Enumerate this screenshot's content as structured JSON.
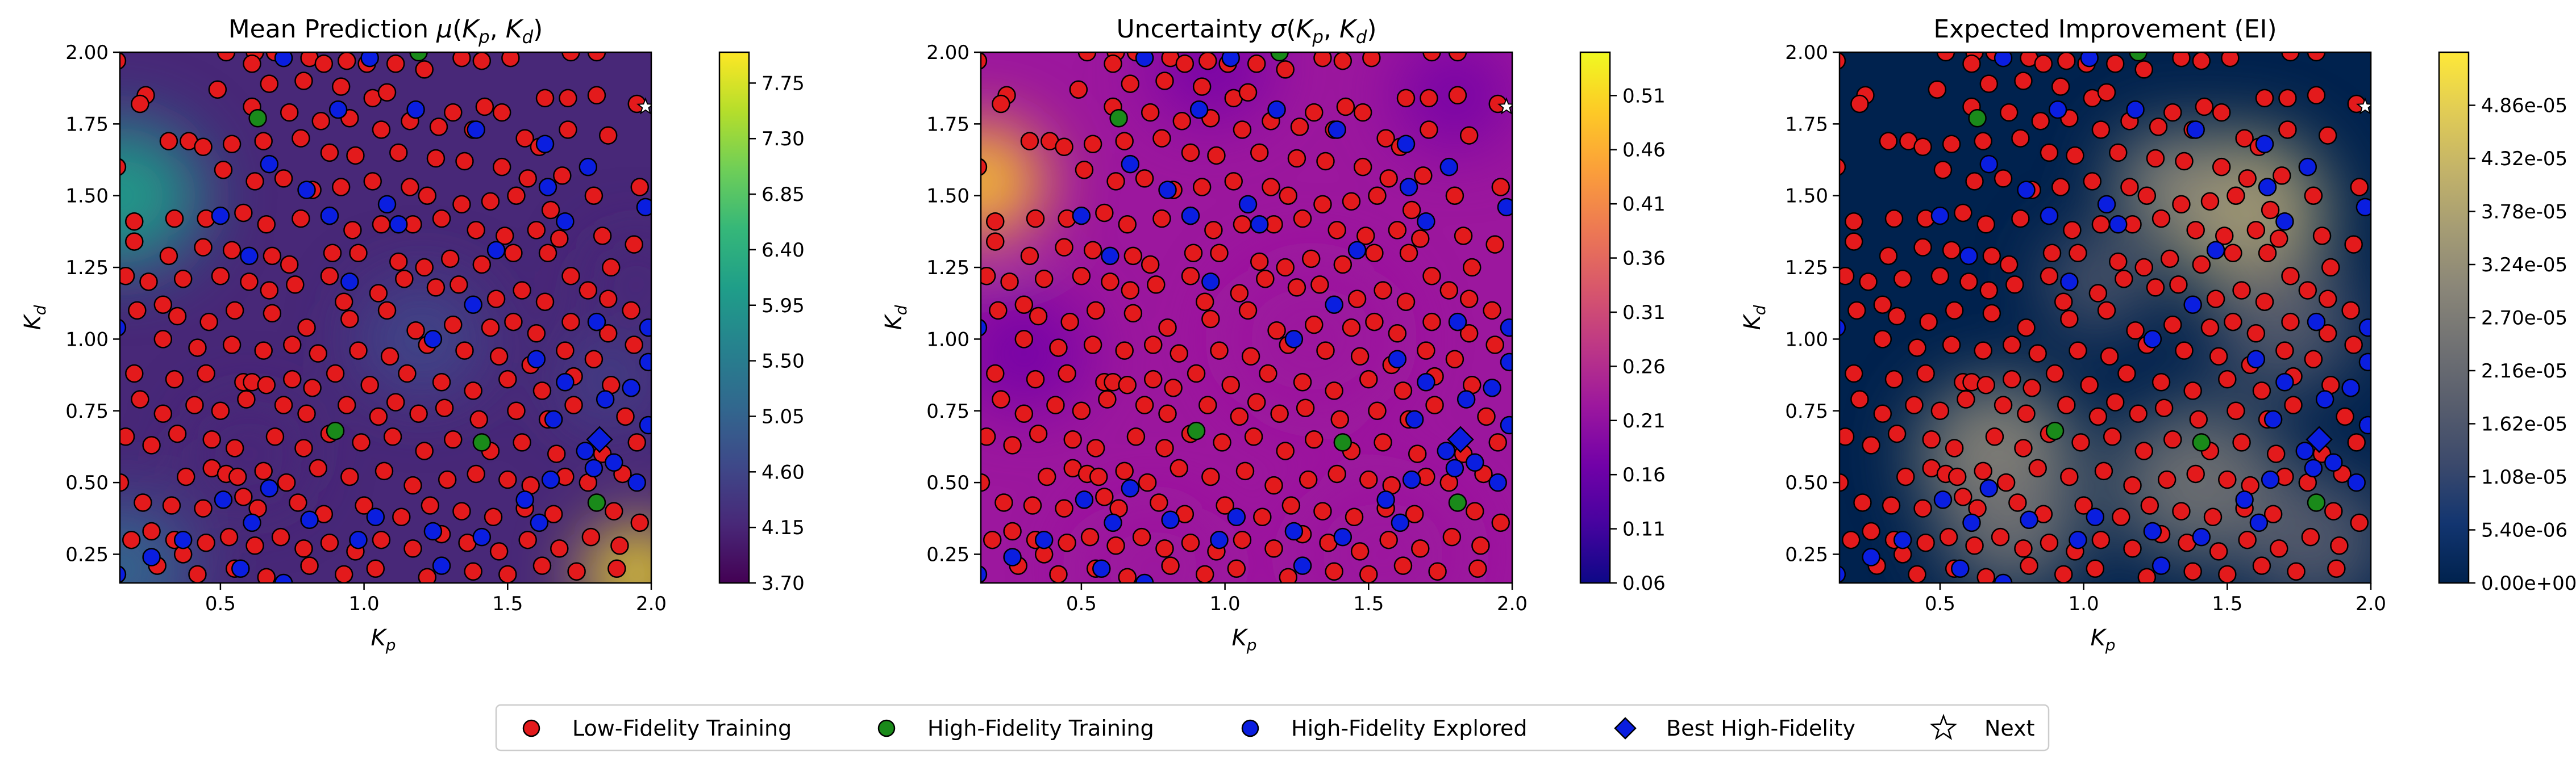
{
  "chart_data": [
    {
      "type": "heatmap",
      "title": "Mean Prediction μ(K_p, K_d)",
      "title_parts": [
        "Mean Prediction ",
        "μ",
        "(",
        "K",
        "p",
        ", ",
        "K",
        "d",
        ")"
      ],
      "xlabel": "K_p",
      "ylabel": "K_d",
      "xlim": [
        0.15,
        2.0
      ],
      "ylim": [
        0.15,
        2.0
      ],
      "x_ticks": [
        "0.5",
        "1.0",
        "1.5",
        "2.0"
      ],
      "x_tick_values": [
        0.5,
        1.0,
        1.5,
        2.0
      ],
      "y_ticks": [
        "0.25",
        "0.50",
        "0.75",
        "1.00",
        "1.25",
        "1.50",
        "1.75",
        "2.00"
      ],
      "y_tick_values": [
        0.25,
        0.5,
        0.75,
        1.0,
        1.25,
        1.5,
        1.75,
        2.0
      ],
      "colormap": "viridis",
      "colorbar_range": [
        3.7,
        8.0
      ],
      "colorbar_ticks": [
        "3.70",
        "4.15",
        "4.60",
        "5.05",
        "5.50",
        "5.95",
        "6.40",
        "6.85",
        "7.30",
        "7.75"
      ],
      "colorbar_tick_values": [
        3.7,
        4.15,
        4.6,
        5.05,
        5.5,
        5.95,
        6.4,
        6.85,
        7.3,
        7.75
      ]
    },
    {
      "type": "heatmap",
      "title": "Uncertainty σ(K_p, K_d)",
      "title_parts": [
        "Uncertainty ",
        "σ",
        "(",
        "K",
        "p",
        ", ",
        "K",
        "d",
        ")"
      ],
      "xlabel": "K_p",
      "ylabel": "K_d",
      "xlim": [
        0.15,
        2.0
      ],
      "ylim": [
        0.15,
        2.0
      ],
      "x_ticks": [
        "0.5",
        "1.0",
        "1.5",
        "2.0"
      ],
      "x_tick_values": [
        0.5,
        1.0,
        1.5,
        2.0
      ],
      "y_ticks": [
        "0.25",
        "0.50",
        "0.75",
        "1.00",
        "1.25",
        "1.50",
        "1.75",
        "2.00"
      ],
      "y_tick_values": [
        0.25,
        0.5,
        0.75,
        1.0,
        1.25,
        1.5,
        1.75,
        2.0
      ],
      "colormap": "plasma",
      "colorbar_range": [
        0.06,
        0.55
      ],
      "colorbar_ticks": [
        "0.06",
        "0.11",
        "0.16",
        "0.21",
        "0.26",
        "0.31",
        "0.36",
        "0.41",
        "0.46",
        "0.51"
      ],
      "colorbar_tick_values": [
        0.06,
        0.11,
        0.16,
        0.21,
        0.26,
        0.31,
        0.36,
        0.41,
        0.46,
        0.51
      ]
    },
    {
      "type": "heatmap",
      "title": "Expected Improvement (EI)",
      "title_parts": [
        "Expected Improvement (EI)"
      ],
      "xlabel": "K_p",
      "ylabel": "K_d",
      "xlim": [
        0.15,
        2.0
      ],
      "ylim": [
        0.15,
        2.0
      ],
      "x_ticks": [
        "0.5",
        "1.0",
        "1.5",
        "2.0"
      ],
      "x_tick_values": [
        0.5,
        1.0,
        1.5,
        2.0
      ],
      "y_ticks": [
        "0.25",
        "0.50",
        "0.75",
        "1.00",
        "1.25",
        "1.50",
        "1.75",
        "2.00"
      ],
      "y_tick_values": [
        0.25,
        0.5,
        0.75,
        1.0,
        1.25,
        1.5,
        1.75,
        2.0
      ],
      "colormap": "cividis",
      "colorbar_range": [
        0,
        5.4e-05
      ],
      "colorbar_ticks": [
        "0.00e+00",
        "5.40e-06",
        "1.08e-05",
        "1.62e-05",
        "2.16e-05",
        "2.70e-05",
        "3.24e-05",
        "3.78e-05",
        "4.32e-05",
        "4.86e-05"
      ],
      "colorbar_tick_values": [
        0,
        5.4e-06,
        1.08e-05,
        1.62e-05,
        2.16e-05,
        2.7e-05,
        3.24e-05,
        3.78e-05,
        4.32e-05,
        4.86e-05
      ]
    }
  ],
  "points": {
    "low_fidelity": [
      [
        0.62,
        2.0
      ],
      [
        0.69,
        2.0
      ],
      [
        0.52,
        2.0
      ],
      [
        0.14,
        1.97
      ],
      [
        0.61,
        1.96
      ],
      [
        0.81,
        1.98
      ],
      [
        0.86,
        1.96
      ],
      [
        0.94,
        1.97
      ],
      [
        1.01,
        1.96
      ],
      [
        1.11,
        1.96
      ],
      [
        1.21,
        1.94
      ],
      [
        1.34,
        1.98
      ],
      [
        1.41,
        1.97
      ],
      [
        1.51,
        1.98
      ],
      [
        1.72,
        2.0
      ],
      [
        1.81,
        2.0
      ],
      [
        0.24,
        1.85
      ],
      [
        0.22,
        1.82
      ],
      [
        0.49,
        1.87
      ],
      [
        0.67,
        1.89
      ],
      [
        0.79,
        1.9
      ],
      [
        0.92,
        1.88
      ],
      [
        1.03,
        1.84
      ],
      [
        1.08,
        1.86
      ],
      [
        1.31,
        1.79
      ],
      [
        1.42,
        1.81
      ],
      [
        1.48,
        1.79
      ],
      [
        1.63,
        1.84
      ],
      [
        1.71,
        1.84
      ],
      [
        1.81,
        1.85
      ],
      [
        1.95,
        1.82
      ],
      [
        0.61,
        1.81
      ],
      [
        0.74,
        1.79
      ],
      [
        0.85,
        1.76
      ],
      [
        0.95,
        1.77
      ],
      [
        1.06,
        1.73
      ],
      [
        1.16,
        1.76
      ],
      [
        1.26,
        1.74
      ],
      [
        1.38,
        1.73
      ],
      [
        1.56,
        1.7
      ],
      [
        1.61,
        1.67
      ],
      [
        1.71,
        1.73
      ],
      [
        1.85,
        1.71
      ],
      [
        0.14,
        1.6
      ],
      [
        0.32,
        1.69
      ],
      [
        0.39,
        1.69
      ],
      [
        0.44,
        1.67
      ],
      [
        0.54,
        1.68
      ],
      [
        0.65,
        1.69
      ],
      [
        0.78,
        1.7
      ],
      [
        0.88,
        1.65
      ],
      [
        0.97,
        1.64
      ],
      [
        1.12,
        1.65
      ],
      [
        1.25,
        1.63
      ],
      [
        1.35,
        1.62
      ],
      [
        1.48,
        1.6
      ],
      [
        1.57,
        1.56
      ],
      [
        1.69,
        1.57
      ],
      [
        0.51,
        1.59
      ],
      [
        0.62,
        1.55
      ],
      [
        0.72,
        1.56
      ],
      [
        0.82,
        1.52
      ],
      [
        0.92,
        1.53
      ],
      [
        1.03,
        1.55
      ],
      [
        1.16,
        1.53
      ],
      [
        1.22,
        1.5
      ],
      [
        1.34,
        1.47
      ],
      [
        1.44,
        1.48
      ],
      [
        1.53,
        1.5
      ],
      [
        1.65,
        1.45
      ],
      [
        1.8,
        1.5
      ],
      [
        1.96,
        1.53
      ],
      [
        0.2,
        1.41
      ],
      [
        0.34,
        1.42
      ],
      [
        0.45,
        1.42
      ],
      [
        0.58,
        1.44
      ],
      [
        0.66,
        1.4
      ],
      [
        0.78,
        1.42
      ],
      [
        0.88,
        1.43
      ],
      [
        0.96,
        1.38
      ],
      [
        1.06,
        1.4
      ],
      [
        1.17,
        1.4
      ],
      [
        1.27,
        1.42
      ],
      [
        1.39,
        1.38
      ],
      [
        1.49,
        1.36
      ],
      [
        1.6,
        1.38
      ],
      [
        1.68,
        1.35
      ],
      [
        1.83,
        1.36
      ],
      [
        0.2,
        1.34
      ],
      [
        0.32,
        1.29
      ],
      [
        0.44,
        1.32
      ],
      [
        0.54,
        1.31
      ],
      [
        0.68,
        1.29
      ],
      [
        0.74,
        1.26
      ],
      [
        0.89,
        1.3
      ],
      [
        0.98,
        1.3
      ],
      [
        1.12,
        1.27
      ],
      [
        1.21,
        1.25
      ],
      [
        1.3,
        1.28
      ],
      [
        1.41,
        1.26
      ],
      [
        1.52,
        1.3
      ],
      [
        1.64,
        1.3
      ],
      [
        1.72,
        1.22
      ],
      [
        1.86,
        1.25
      ],
      [
        1.94,
        1.33
      ],
      [
        0.17,
        1.22
      ],
      [
        0.25,
        1.2
      ],
      [
        0.3,
        1.12
      ],
      [
        0.37,
        1.21
      ],
      [
        0.5,
        1.22
      ],
      [
        0.6,
        1.2
      ],
      [
        0.67,
        1.17
      ],
      [
        0.76,
        1.19
      ],
      [
        0.88,
        1.22
      ],
      [
        0.93,
        1.13
      ],
      [
        1.05,
        1.16
      ],
      [
        1.14,
        1.21
      ],
      [
        1.25,
        1.18
      ],
      [
        1.33,
        1.19
      ],
      [
        1.46,
        1.14
      ],
      [
        1.55,
        1.17
      ],
      [
        1.63,
        1.13
      ],
      [
        1.78,
        1.17
      ],
      [
        1.85,
        1.14
      ],
      [
        0.21,
        1.1
      ],
      [
        0.35,
        1.08
      ],
      [
        0.46,
        1.06
      ],
      [
        0.55,
        1.1
      ],
      [
        0.68,
        1.09
      ],
      [
        0.8,
        1.04
      ],
      [
        0.95,
        1.07
      ],
      [
        1.08,
        1.1
      ],
      [
        1.18,
        1.03
      ],
      [
        1.31,
        1.05
      ],
      [
        1.44,
        1.04
      ],
      [
        1.52,
        1.06
      ],
      [
        1.6,
        1.02
      ],
      [
        1.72,
        1.06
      ],
      [
        1.85,
        1.02
      ],
      [
        1.93,
        1.1
      ],
      [
        0.3,
        1.0
      ],
      [
        0.42,
        0.97
      ],
      [
        0.54,
        0.98
      ],
      [
        0.65,
        0.96
      ],
      [
        0.75,
        0.98
      ],
      [
        0.84,
        0.95
      ],
      [
        0.98,
        0.96
      ],
      [
        1.09,
        0.94
      ],
      [
        1.22,
        0.98
      ],
      [
        1.35,
        0.96
      ],
      [
        1.47,
        0.94
      ],
      [
        1.58,
        0.91
      ],
      [
        1.7,
        0.96
      ],
      [
        1.8,
        0.93
      ],
      [
        1.94,
        0.98
      ],
      [
        0.2,
        0.88
      ],
      [
        0.34,
        0.86
      ],
      [
        0.45,
        0.88
      ],
      [
        0.58,
        0.85
      ],
      [
        0.61,
        0.85
      ],
      [
        0.66,
        0.84
      ],
      [
        0.75,
        0.86
      ],
      [
        0.82,
        0.83
      ],
      [
        0.9,
        0.88
      ],
      [
        1.02,
        0.84
      ],
      [
        1.15,
        0.88
      ],
      [
        1.27,
        0.85
      ],
      [
        1.38,
        0.82
      ],
      [
        1.5,
        0.86
      ],
      [
        1.62,
        0.82
      ],
      [
        1.73,
        0.87
      ],
      [
        1.86,
        0.84
      ],
      [
        0.22,
        0.79
      ],
      [
        0.3,
        0.74
      ],
      [
        0.41,
        0.77
      ],
      [
        0.5,
        0.75
      ],
      [
        0.59,
        0.79
      ],
      [
        0.72,
        0.77
      ],
      [
        0.8,
        0.74
      ],
      [
        0.94,
        0.77
      ],
      [
        1.05,
        0.73
      ],
      [
        1.11,
        0.78
      ],
      [
        1.19,
        0.74
      ],
      [
        1.28,
        0.76
      ],
      [
        1.4,
        0.72
      ],
      [
        1.53,
        0.75
      ],
      [
        1.64,
        0.72
      ],
      [
        1.73,
        0.77
      ],
      [
        1.91,
        0.73
      ],
      [
        0.17,
        0.66
      ],
      [
        0.26,
        0.63
      ],
      [
        0.35,
        0.67
      ],
      [
        0.47,
        0.65
      ],
      [
        0.55,
        0.62
      ],
      [
        0.69,
        0.66
      ],
      [
        0.79,
        0.62
      ],
      [
        0.88,
        0.67
      ],
      [
        0.99,
        0.64
      ],
      [
        1.1,
        0.66
      ],
      [
        1.21,
        0.61
      ],
      [
        1.31,
        0.65
      ],
      [
        1.44,
        0.61
      ],
      [
        1.55,
        0.64
      ],
      [
        1.67,
        0.6
      ],
      [
        1.83,
        0.6
      ],
      [
        1.95,
        0.64
      ],
      [
        0.15,
        0.5
      ],
      [
        0.38,
        0.52
      ],
      [
        0.47,
        0.55
      ],
      [
        0.52,
        0.53
      ],
      [
        0.56,
        0.52
      ],
      [
        0.65,
        0.54
      ],
      [
        0.73,
        0.5
      ],
      [
        0.84,
        0.55
      ],
      [
        0.95,
        0.52
      ],
      [
        1.07,
        0.54
      ],
      [
        1.17,
        0.49
      ],
      [
        1.29,
        0.51
      ],
      [
        1.39,
        0.53
      ],
      [
        1.5,
        0.51
      ],
      [
        1.58,
        0.49
      ],
      [
        1.7,
        0.52
      ],
      [
        1.78,
        0.5
      ],
      [
        1.9,
        0.53
      ],
      [
        0.23,
        0.43
      ],
      [
        0.33,
        0.42
      ],
      [
        0.44,
        0.41
      ],
      [
        0.58,
        0.45
      ],
      [
        0.63,
        0.41
      ],
      [
        0.77,
        0.43
      ],
      [
        0.86,
        0.39
      ],
      [
        1.0,
        0.42
      ],
      [
        1.13,
        0.38
      ],
      [
        1.23,
        0.42
      ],
      [
        1.34,
        0.4
      ],
      [
        1.45,
        0.38
      ],
      [
        1.56,
        0.41
      ],
      [
        1.66,
        0.39
      ],
      [
        1.87,
        0.4
      ],
      [
        1.96,
        0.36
      ],
      [
        0.19,
        0.3
      ],
      [
        0.26,
        0.33
      ],
      [
        0.34,
        0.3
      ],
      [
        0.37,
        0.25
      ],
      [
        0.45,
        0.29
      ],
      [
        0.53,
        0.31
      ],
      [
        0.62,
        0.28
      ],
      [
        0.71,
        0.31
      ],
      [
        0.79,
        0.27
      ],
      [
        0.88,
        0.29
      ],
      [
        0.97,
        0.26
      ],
      [
        1.06,
        0.3
      ],
      [
        1.17,
        0.27
      ],
      [
        1.27,
        0.32
      ],
      [
        1.36,
        0.29
      ],
      [
        1.47,
        0.26
      ],
      [
        1.57,
        0.3
      ],
      [
        1.68,
        0.27
      ],
      [
        1.79,
        0.31
      ],
      [
        1.89,
        0.28
      ],
      [
        0.28,
        0.21
      ],
      [
        0.42,
        0.18
      ],
      [
        0.55,
        0.2
      ],
      [
        0.66,
        0.17
      ],
      [
        0.81,
        0.21
      ],
      [
        0.93,
        0.18
      ],
      [
        1.04,
        0.2
      ],
      [
        1.22,
        0.17
      ],
      [
        1.38,
        0.19
      ],
      [
        1.5,
        0.18
      ],
      [
        1.62,
        0.21
      ],
      [
        1.74,
        0.19
      ],
      [
        1.88,
        0.2
      ]
    ],
    "high_fidelity": [
      [
        0.63,
        1.77
      ],
      [
        0.9,
        0.68
      ],
      [
        1.41,
        0.64
      ],
      [
        1.81,
        0.43
      ],
      [
        1.19,
        2.0
      ]
    ],
    "explored": [
      [
        0.72,
        1.98
      ],
      [
        1.02,
        1.98
      ],
      [
        0.91,
        1.8
      ],
      [
        1.18,
        1.8
      ],
      [
        1.39,
        1.73
      ],
      [
        1.63,
        1.68
      ],
      [
        0.67,
        1.61
      ],
      [
        0.8,
        1.52
      ],
      [
        0.5,
        1.43
      ],
      [
        0.88,
        1.43
      ],
      [
        1.08,
        1.47
      ],
      [
        1.78,
        1.6
      ],
      [
        1.64,
        1.53
      ],
      [
        0.6,
        1.29
      ],
      [
        1.46,
        1.31
      ],
      [
        1.7,
        1.41
      ],
      [
        1.98,
        1.46
      ],
      [
        1.12,
        1.4
      ],
      [
        0.95,
        1.2
      ],
      [
        1.38,
        1.12
      ],
      [
        1.81,
        1.06
      ],
      [
        1.99,
        1.04
      ],
      [
        0.14,
        1.04
      ],
      [
        1.24,
        1.0
      ],
      [
        1.6,
        0.93
      ],
      [
        1.7,
        0.85
      ],
      [
        1.84,
        0.79
      ],
      [
        1.93,
        0.83
      ],
      [
        1.99,
        0.92
      ],
      [
        1.66,
        0.72
      ],
      [
        1.77,
        0.61
      ],
      [
        1.87,
        0.57
      ],
      [
        1.99,
        0.7
      ],
      [
        1.65,
        0.51
      ],
      [
        1.8,
        0.55
      ],
      [
        1.95,
        0.5
      ],
      [
        0.51,
        0.44
      ],
      [
        0.67,
        0.48
      ],
      [
        0.61,
        0.36
      ],
      [
        0.81,
        0.37
      ],
      [
        1.04,
        0.38
      ],
      [
        1.24,
        0.33
      ],
      [
        1.41,
        0.31
      ],
      [
        0.37,
        0.3
      ],
      [
        0.26,
        0.24
      ],
      [
        0.14,
        0.18
      ],
      [
        0.57,
        0.2
      ],
      [
        0.98,
        0.3
      ],
      [
        1.56,
        0.44
      ],
      [
        1.61,
        0.36
      ],
      [
        1.27,
        0.21
      ],
      [
        0.72,
        0.15
      ]
    ],
    "best": [
      [
        1.82,
        0.65
      ]
    ],
    "next": [
      [
        1.98,
        1.81
      ]
    ]
  },
  "legend": [
    {
      "label": "Low-Fidelity Training",
      "marker": "circle",
      "color": "#e31a1c"
    },
    {
      "label": "High-Fidelity Training",
      "marker": "circle",
      "color": "#1a8a1a"
    },
    {
      "label": "High-Fidelity Explored",
      "marker": "circle",
      "color": "#0a1ee0"
    },
    {
      "label": "Best High-Fidelity",
      "marker": "diamond",
      "color": "#0a1ee0"
    },
    {
      "label": "Next",
      "marker": "star",
      "color": "#ffffff"
    }
  ],
  "colors": {
    "low_fidelity": "#e31a1c",
    "high_fidelity": "#1a8a1a",
    "explored": "#0a1ee0",
    "best": "#0a1ee0",
    "next": "#ffffff",
    "edge": "#000000"
  }
}
